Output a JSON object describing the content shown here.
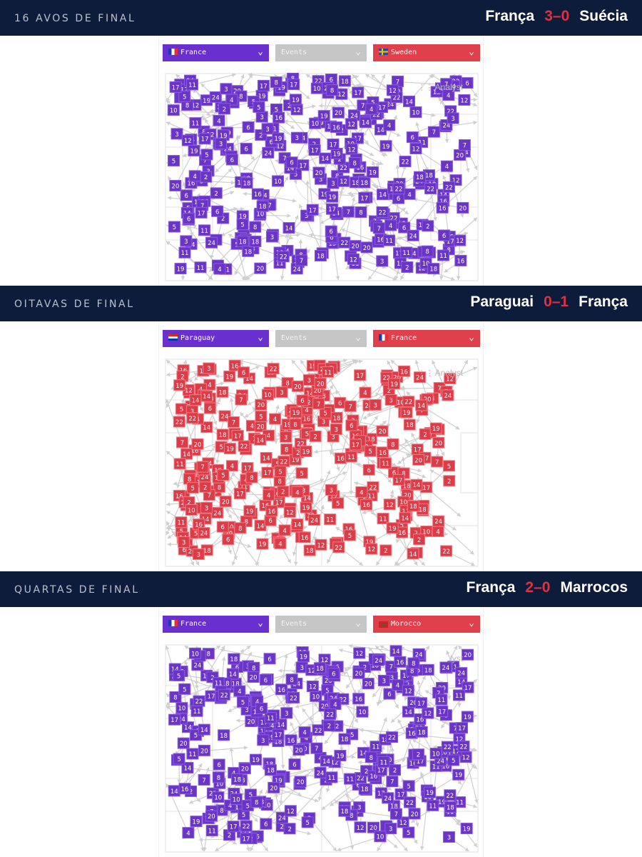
{
  "sections": [
    {
      "round": "16 AVOS DE FINAL",
      "home": "França",
      "score": "3–0",
      "away": "Suécia",
      "dropdowns": {
        "left_team": "France",
        "events": "Events",
        "right_team": "Sweden"
      },
      "left_flag": "france-flag",
      "right_flag": "sweden-flag",
      "marker_color": "#6a34c6",
      "marker_border": "#8a5ce0",
      "watermark": "Analyst",
      "seed": 17
    },
    {
      "round": "OITAVAS DE FINAL",
      "home": "Paraguai",
      "score": "0–1",
      "away": "França",
      "dropdowns": {
        "left_team": "Paraguay",
        "events": "Events",
        "right_team": "France"
      },
      "left_flag": "paraguay-flag",
      "right_flag": "france-flag",
      "marker_color": "#dc3c48",
      "marker_border": "#ef7d85",
      "watermark": "Analyst",
      "seed": 91
    },
    {
      "round": "QUARTAS DE FINAL",
      "home": "França",
      "score": "2–0",
      "away": "Marrocos",
      "dropdowns": {
        "left_team": "France",
        "events": "Events",
        "right_team": "Morocco"
      },
      "left_flag": "france-flag",
      "right_flag": "morocco-flag",
      "marker_color": "#6a34c6",
      "marker_border": "#8a5ce0",
      "watermark": "lyst",
      "seed": 53
    }
  ],
  "colors": {
    "header_bg": "#0e1c3b",
    "score_accent": "#e0313f",
    "left_dropdown": "#6a2fcf",
    "events_dropdown": "#c6c6c6",
    "right_dropdown": "#e0404c",
    "arrow": "#cfcfcf"
  },
  "jersey_numbers": [
    "2",
    "3",
    "4",
    "5",
    "6",
    "7",
    "8",
    "10",
    "11",
    "12",
    "14",
    "16",
    "17",
    "18",
    "19",
    "20",
    "22",
    "24"
  ]
}
